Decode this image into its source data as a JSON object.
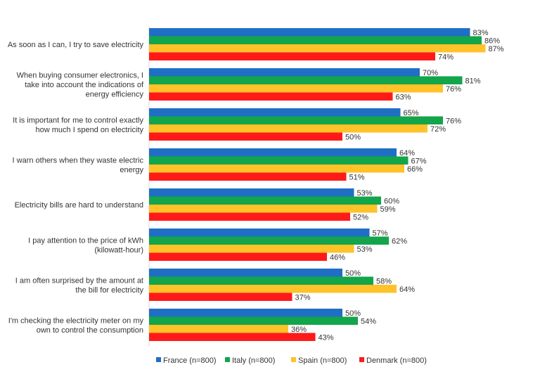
{
  "chart_data": {
    "type": "bar",
    "orientation": "horizontal",
    "categories": [
      [
        "As soon as I can, I try to save electricity"
      ],
      [
        "When buying consumer electronics, I",
        "take into account the indications of",
        "energy efficiency"
      ],
      [
        "It is important for me to control exactly",
        "how much I spend on electricity"
      ],
      [
        "I warn others when they waste electric",
        "energy"
      ],
      [
        "Electricity bills are hard to understand"
      ],
      [
        "I pay attention to the price of kWh",
        "(kilowatt-hour)"
      ],
      [
        "I am often surprised by the amount at",
        "the bill for electricity"
      ],
      [
        "I'm checking the electricity meter on my",
        "own to control the consumption"
      ]
    ],
    "series": [
      {
        "name": "France (n=800)",
        "color": "#1F6FC5",
        "values": [
          83,
          70,
          65,
          64,
          53,
          57,
          50,
          50
        ]
      },
      {
        "name": "Italy (n=800)",
        "color": "#13A54A",
        "values": [
          86,
          81,
          76,
          67,
          60,
          62,
          58,
          54
        ]
      },
      {
        "name": "Spain (n=800)",
        "color": "#FFC229",
        "values": [
          87,
          76,
          72,
          66,
          59,
          53,
          64,
          36
        ]
      },
      {
        "name": "Denmark (n=800)",
        "color": "#FF1A1A",
        "values": [
          74,
          63,
          50,
          51,
          52,
          46,
          37,
          43
        ]
      }
    ],
    "value_suffix": "%",
    "xlim": [
      0,
      100
    ],
    "grid": false,
    "legend_position": "bottom",
    "title": "",
    "xlabel": "",
    "ylabel": ""
  }
}
